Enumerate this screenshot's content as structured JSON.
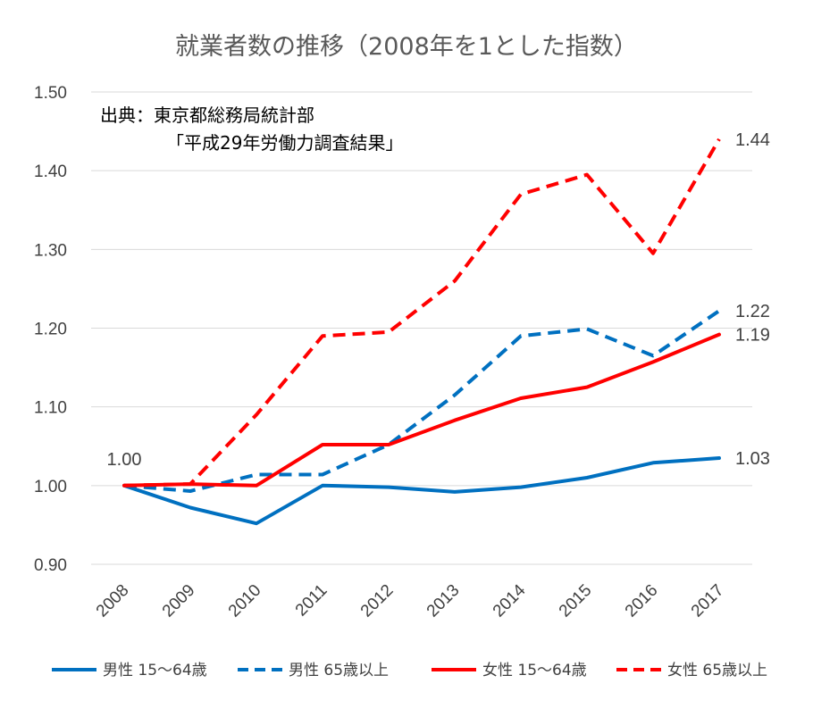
{
  "chart_data": {
    "type": "line",
    "title": "就業者数の推移（2008年を1とした指数）",
    "xlabel": "",
    "ylabel": "",
    "x": [
      "2008",
      "2009",
      "2010",
      "2011",
      "2012",
      "2013",
      "2014",
      "2015",
      "2016",
      "2017"
    ],
    "ylim": [
      0.9,
      1.5
    ],
    "yticks": [
      "0.90",
      "1.00",
      "1.10",
      "1.20",
      "1.30",
      "1.40",
      "1.50"
    ],
    "grid": true,
    "legend_position": "bottom",
    "annotation": [
      "出典：東京都総務局統計部",
      "「平成29年労働力調査結果」"
    ],
    "start_label": "1.00",
    "series": [
      {
        "name": "男性 15〜64歳",
        "color": "#0070c0",
        "dashed": false,
        "values": [
          1.0,
          0.972,
          0.952,
          1.0,
          0.998,
          0.992,
          0.998,
          1.01,
          1.029,
          1.035
        ],
        "end_label": "1.03"
      },
      {
        "name": "男性 65歳以上",
        "color": "#0070c0",
        "dashed": true,
        "values": [
          1.0,
          0.993,
          1.014,
          1.014,
          1.052,
          1.115,
          1.19,
          1.199,
          1.165,
          1.222
        ],
        "end_label": "1.22"
      },
      {
        "name": "女性 15〜64歳",
        "color": "#ff0000",
        "dashed": false,
        "values": [
          1.0,
          1.002,
          1.0,
          1.052,
          1.052,
          1.083,
          1.111,
          1.125,
          1.157,
          1.192
        ],
        "end_label": "1.19"
      },
      {
        "name": "女性 65歳以上",
        "color": "#ff0000",
        "dashed": true,
        "values": [
          1.0,
          1.002,
          1.09,
          1.19,
          1.195,
          1.26,
          1.37,
          1.395,
          1.295,
          1.44
        ],
        "end_label": "1.44"
      }
    ]
  }
}
